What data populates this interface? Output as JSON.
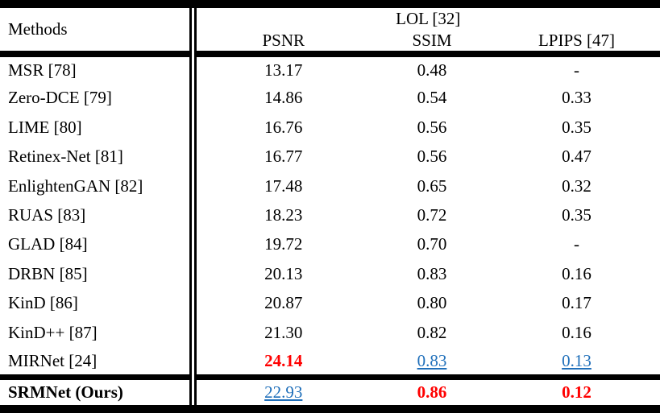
{
  "table": {
    "methods_header": "Methods",
    "group_header": "LOL [32]",
    "columns": [
      "PSNR",
      "SSIM",
      "LPIPS [47]"
    ],
    "rows": [
      {
        "method": "MSR [78]",
        "values": [
          "13.17",
          "0.48",
          "-"
        ],
        "styles": [
          "normal",
          "normal",
          "normal"
        ]
      },
      {
        "method": "Zero-DCE [79]",
        "values": [
          "14.86",
          "0.54",
          "0.33"
        ],
        "styles": [
          "normal",
          "normal",
          "normal"
        ]
      },
      {
        "method": "LIME [80]",
        "values": [
          "16.76",
          "0.56",
          "0.35"
        ],
        "styles": [
          "normal",
          "normal",
          "normal"
        ]
      },
      {
        "method": "Retinex-Net [81]",
        "values": [
          "16.77",
          "0.56",
          "0.47"
        ],
        "styles": [
          "normal",
          "normal",
          "normal"
        ]
      },
      {
        "method": "EnlightenGAN [82]",
        "values": [
          "17.48",
          "0.65",
          "0.32"
        ],
        "styles": [
          "normal",
          "normal",
          "normal"
        ]
      },
      {
        "method": "RUAS [83]",
        "values": [
          "18.23",
          "0.72",
          "0.35"
        ],
        "styles": [
          "normal",
          "normal",
          "normal"
        ]
      },
      {
        "method": "GLAD [84]",
        "values": [
          "19.72",
          "0.70",
          "-"
        ],
        "styles": [
          "normal",
          "normal",
          "normal"
        ]
      },
      {
        "method": "DRBN [85]",
        "values": [
          "20.13",
          "0.83",
          "0.16"
        ],
        "styles": [
          "normal",
          "normal",
          "normal"
        ]
      },
      {
        "method": "KinD [86]",
        "values": [
          "20.87",
          "0.80",
          "0.17"
        ],
        "styles": [
          "normal",
          "normal",
          "normal"
        ]
      },
      {
        "method": "KinD++ [87]",
        "values": [
          "21.30",
          "0.82",
          "0.16"
        ],
        "styles": [
          "normal",
          "normal",
          "normal"
        ]
      },
      {
        "method": "MIRNet [24]",
        "values": [
          "24.14",
          "0.83",
          "0.13"
        ],
        "styles": [
          "best",
          "second",
          "second"
        ]
      }
    ],
    "footer": {
      "method": "SRMNet (Ours)",
      "values": [
        "22.93",
        "0.86",
        "0.12"
      ],
      "styles": [
        "second",
        "best",
        "best"
      ]
    }
  },
  "colors": {
    "best": "#ff0000",
    "second": "#1f6fba",
    "text": "#000000",
    "rule": "#000000",
    "background": "#ffffff"
  }
}
